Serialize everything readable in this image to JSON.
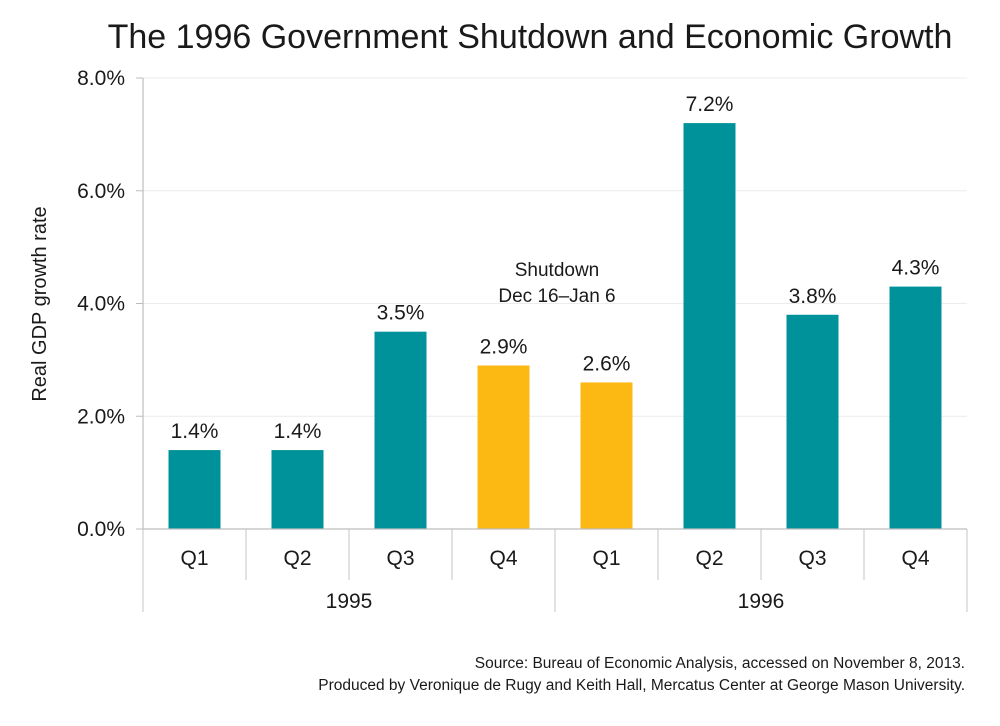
{
  "chart_data": {
    "type": "bar",
    "title": "The 1996 Government Shutdown and Economic Growth",
    "ylabel": "Real GDP growth rate",
    "ylim": [
      0,
      8
    ],
    "yticks": [
      "0.0%",
      "2.0%",
      "4.0%",
      "6.0%",
      "8.0%"
    ],
    "grid": true,
    "groups": [
      {
        "label": "1995",
        "categories": [
          "Q1",
          "Q2",
          "Q3",
          "Q4"
        ]
      },
      {
        "label": "1996",
        "categories": [
          "Q1",
          "Q2",
          "Q3",
          "Q4"
        ]
      }
    ],
    "categories": [
      "Q1",
      "Q2",
      "Q3",
      "Q4",
      "Q1",
      "Q2",
      "Q3",
      "Q4"
    ],
    "values": [
      1.4,
      1.4,
      3.5,
      2.9,
      2.6,
      7.2,
      3.8,
      4.3
    ],
    "data_labels": [
      "1.4%",
      "1.4%",
      "3.5%",
      "2.9%",
      "2.6%",
      "7.2%",
      "3.8%",
      "4.3%"
    ],
    "highlight": [
      false,
      false,
      false,
      true,
      true,
      false,
      false,
      false
    ],
    "colors": {
      "normal": "#00929a",
      "highlight": "#fdb913"
    },
    "annotation": {
      "lines": [
        "Shutdown",
        "Dec 16–Jan 6"
      ]
    },
    "source": [
      "Source: Bureau of Economic Analysis, accessed on November 8, 2013.",
      "Produced by Veronique de Rugy and Keith Hall, Mercatus Center at George Mason University."
    ]
  }
}
